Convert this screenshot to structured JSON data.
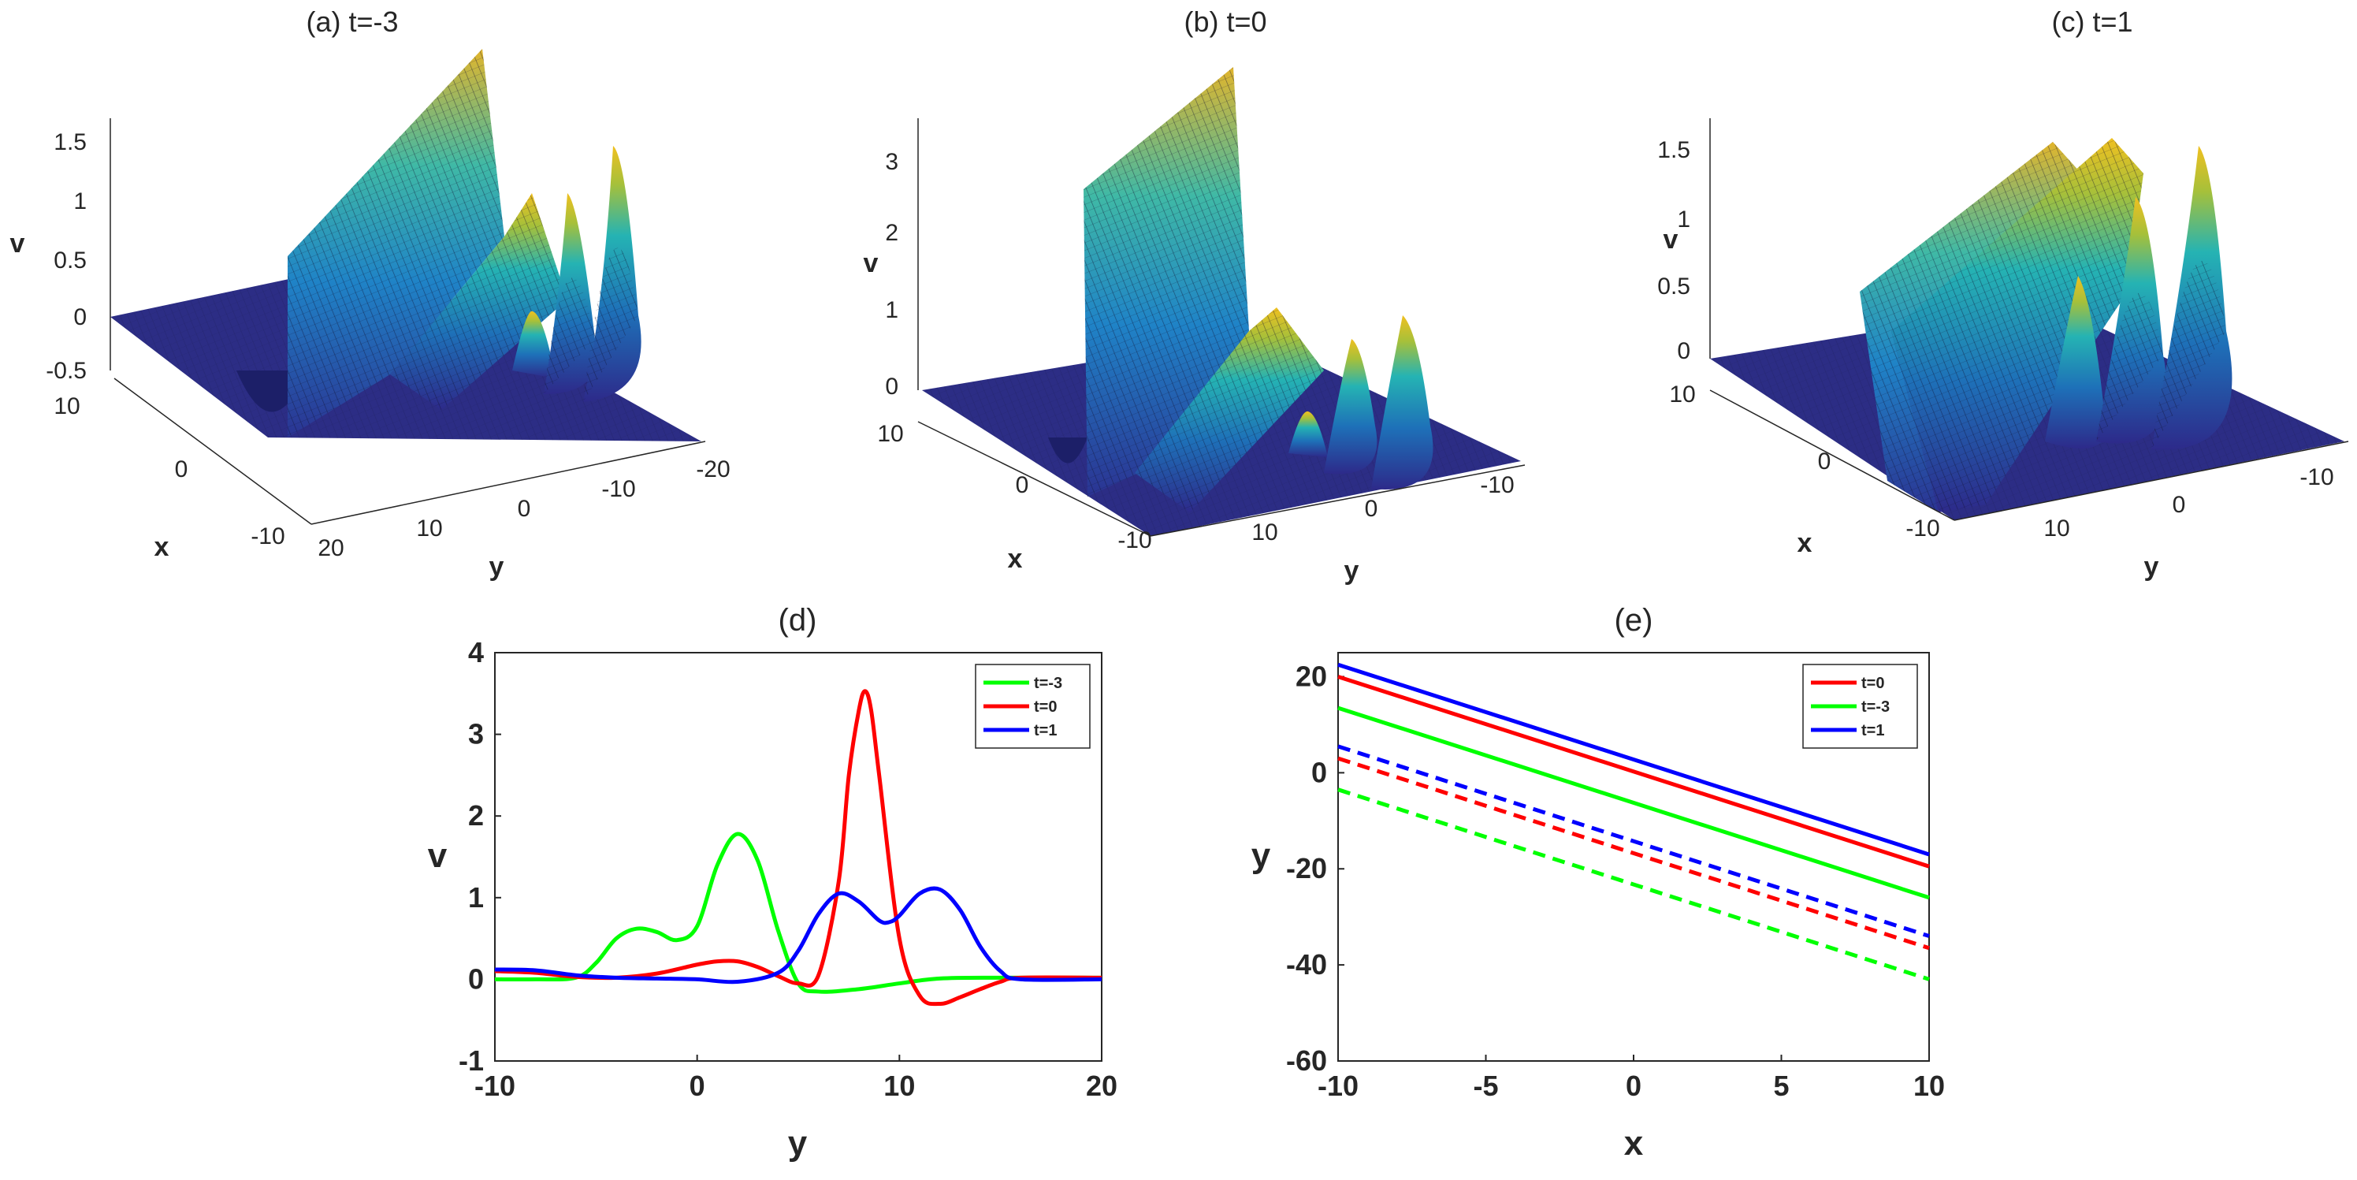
{
  "chart_data": [
    {
      "panel": "a",
      "type": "surface",
      "title": "(a) t=-3",
      "xlabel": "x",
      "ylabel": "y",
      "zlabel": "v",
      "x_ticks": [
        "10",
        "0",
        "-10"
      ],
      "y_ticks": [
        "20",
        "10",
        "0",
        "-10",
        "-20"
      ],
      "z_ticks": [
        "1.5",
        "1",
        "0.5",
        "0",
        "-0.5"
      ],
      "xlim": [
        -10,
        10
      ],
      "ylim": [
        -20,
        20
      ],
      "zlim": [
        -0.5,
        1.75
      ],
      "t": -3,
      "colormap": "parula",
      "grid": false
    },
    {
      "panel": "b",
      "type": "surface",
      "title": "(b) t=0",
      "xlabel": "x",
      "ylabel": "y",
      "zlabel": "v",
      "x_ticks": [
        "10",
        "0",
        "-10"
      ],
      "y_ticks": [
        "10",
        "0",
        "-10"
      ],
      "z_ticks": [
        "3",
        "2",
        "1",
        "0"
      ],
      "xlim": [
        -10,
        10
      ],
      "ylim": [
        -15,
        20
      ],
      "zlim": [
        -0.2,
        3.6
      ],
      "t": 0,
      "colormap": "parula",
      "grid": false
    },
    {
      "panel": "c",
      "type": "surface",
      "title": "(c) t=1",
      "xlabel": "x",
      "ylabel": "y",
      "zlabel": "v",
      "x_ticks": [
        "10",
        "0",
        "-10"
      ],
      "y_ticks": [
        "10",
        "0",
        "-10"
      ],
      "z_ticks": [
        "1.5",
        "1",
        "0.5",
        "0"
      ],
      "xlim": [
        -10,
        10
      ],
      "ylim": [
        -15,
        20
      ],
      "zlim": [
        -0.1,
        1.6
      ],
      "t": 1,
      "colormap": "parula",
      "grid": false
    },
    {
      "panel": "d",
      "type": "line",
      "title": "(d)",
      "xlabel": "y",
      "ylabel": "v",
      "xlim": [
        -10,
        20
      ],
      "ylim": [
        -1,
        4
      ],
      "x_ticks": [
        -10,
        0,
        10,
        20
      ],
      "y_ticks": [
        -1,
        0,
        1,
        2,
        3,
        4
      ],
      "legend_position": "top-right",
      "grid": false,
      "series": [
        {
          "name": "t=-3",
          "color": "#00ff00",
          "x": [
            -10,
            -8,
            -6,
            -5,
            -4,
            -3,
            -2,
            -1,
            0,
            1,
            2,
            3,
            4,
            5,
            6,
            8,
            10,
            12,
            15,
            20
          ],
          "y": [
            0.0,
            0.0,
            0.02,
            0.2,
            0.5,
            0.62,
            0.58,
            0.48,
            0.65,
            1.4,
            1.78,
            1.45,
            0.6,
            -0.05,
            -0.15,
            -0.12,
            -0.05,
            0.01,
            0.02,
            0.02
          ]
        },
        {
          "name": "t=0",
          "color": "#ff0000",
          "x": [
            -10,
            -8,
            -6,
            -4,
            -2,
            0,
            1,
            2,
            3,
            4,
            5,
            6,
            7,
            7.5,
            8,
            8.3,
            8.6,
            9,
            10,
            11,
            12,
            13,
            14,
            15,
            16,
            20
          ],
          "y": [
            0.1,
            0.08,
            0.03,
            0.02,
            0.07,
            0.18,
            0.22,
            0.22,
            0.15,
            0.04,
            -0.05,
            0.05,
            1.2,
            2.5,
            3.3,
            3.53,
            3.3,
            2.5,
            0.5,
            -0.2,
            -0.3,
            -0.22,
            -0.12,
            -0.03,
            0.02,
            0.02
          ]
        },
        {
          "name": "t=1",
          "color": "#0000ff",
          "x": [
            -10,
            -8,
            -6,
            -4,
            -2,
            0,
            2,
            4,
            5,
            6,
            7,
            8,
            9,
            9.5,
            10,
            11,
            12,
            13,
            14,
            15,
            16,
            20
          ],
          "y": [
            0.12,
            0.11,
            0.05,
            0.02,
            0.01,
            0.0,
            -0.03,
            0.08,
            0.35,
            0.8,
            1.05,
            0.95,
            0.72,
            0.7,
            0.78,
            1.05,
            1.1,
            0.85,
            0.4,
            0.1,
            0.0,
            0.0
          ]
        }
      ]
    },
    {
      "panel": "e",
      "type": "line",
      "title": "(e)",
      "xlabel": "x",
      "ylabel": "y",
      "xlim": [
        -10,
        10
      ],
      "ylim": [
        -60,
        25
      ],
      "x_ticks": [
        -10,
        -5,
        0,
        5,
        10
      ],
      "y_ticks": [
        -60,
        -40,
        -20,
        0,
        20
      ],
      "legend_position": "top-right",
      "grid": false,
      "series": [
        {
          "name": "t=0",
          "color": "#ff0000",
          "style": "solid",
          "x": [
            -10,
            10
          ],
          "y": [
            20,
            -19.5
          ]
        },
        {
          "name": "t=-3",
          "color": "#00ff00",
          "style": "solid",
          "x": [
            -10,
            10
          ],
          "y": [
            13.5,
            -26
          ]
        },
        {
          "name": "t=1",
          "color": "#0000ff",
          "style": "solid",
          "x": [
            -10,
            10
          ],
          "y": [
            22.5,
            -17
          ]
        },
        {
          "name": "",
          "color": "#0000ff",
          "style": "dashed",
          "x": [
            -10,
            10
          ],
          "y": [
            5.5,
            -34
          ]
        },
        {
          "name": "",
          "color": "#ff0000",
          "style": "dashed",
          "x": [
            -10,
            10
          ],
          "y": [
            3,
            -36.5
          ]
        },
        {
          "name": "",
          "color": "#00ff00",
          "style": "dashed",
          "x": [
            -10,
            10
          ],
          "y": [
            -3.5,
            -43
          ]
        }
      ]
    }
  ]
}
